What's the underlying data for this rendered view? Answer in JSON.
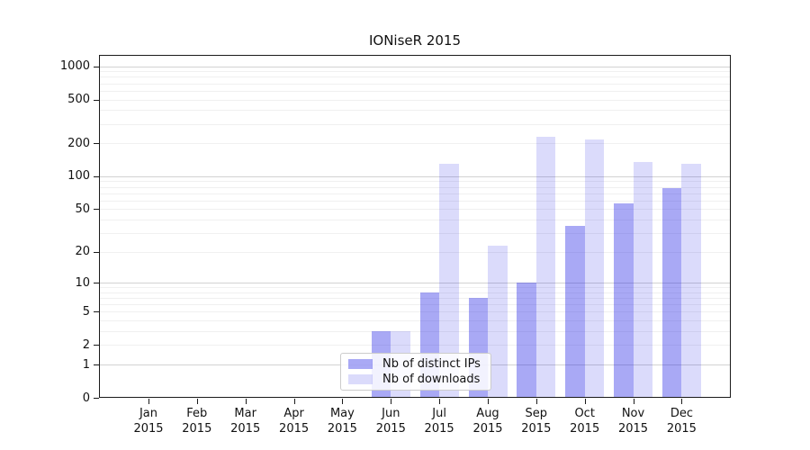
{
  "title": "IONiseR 2015",
  "chart_data": {
    "type": "bar",
    "title": "IONiseR 2015",
    "xlabel": "",
    "ylabel": "",
    "categories": [
      "Jan 2015",
      "Feb 2015",
      "Mar 2015",
      "Apr 2015",
      "May 2015",
      "Jun 2015",
      "Jul 2015",
      "Aug 2015",
      "Sep 2015",
      "Oct 2015",
      "Nov 2015",
      "Dec 2015"
    ],
    "series": [
      {
        "name": "Nb of distinct IPs",
        "color": "rgba(30,30,230,0.38)",
        "values": [
          0,
          0,
          0,
          0,
          0,
          3,
          8,
          7,
          10,
          35,
          57,
          78
        ]
      },
      {
        "name": "Nb of downloads",
        "color": "rgba(30,30,230,0.16)",
        "values": [
          0,
          0,
          0,
          0,
          0,
          3,
          131,
          23,
          230,
          215,
          135,
          129
        ]
      }
    ],
    "yscale": "log10(1+y)",
    "yticks": [
      0,
      1,
      2,
      5,
      10,
      20,
      50,
      100,
      200,
      500,
      1000
    ],
    "ylim": [
      0,
      1290
    ],
    "grid": "horizontal, minor log lines light / decade lines darker",
    "legend_position": "bottom center inside plot",
    "background_color": "#ffffff",
    "text_color": "#111111"
  }
}
